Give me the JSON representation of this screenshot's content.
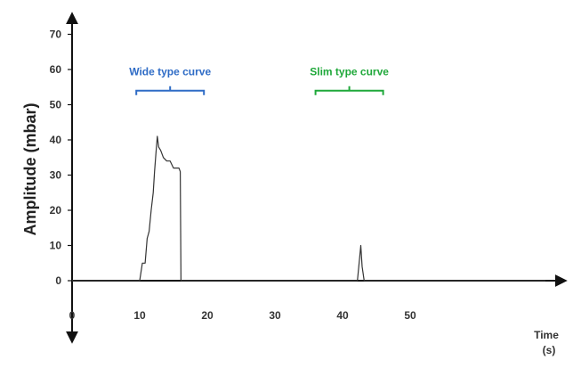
{
  "chart_data": {
    "type": "line",
    "title": "",
    "xlabel": "Time",
    "xunit": "(s)",
    "ylabel": "Amplitude  (mbar)",
    "xlim": [
      0,
      70
    ],
    "ylim": [
      -10,
      70
    ],
    "x_ticks": [
      0,
      10,
      20,
      30,
      40,
      50
    ],
    "y_ticks": [
      0,
      10,
      20,
      30,
      40,
      50,
      60,
      70
    ],
    "grid": false,
    "series": [
      {
        "color": "#333333",
        "x": [
          0,
          10.0,
          10.4,
          10.8,
          11.1,
          11.4,
          11.7,
          12.0,
          12.2,
          12.4,
          12.6,
          12.8,
          13.1,
          13.5,
          14.0,
          14.5,
          15.0,
          15.5,
          15.8,
          16.0,
          16.1,
          20,
          30,
          40,
          42.2,
          42.5,
          42.7,
          42.9,
          43.2,
          50,
          70
        ],
        "y": [
          0,
          0,
          5,
          5,
          12,
          14,
          20,
          25,
          31,
          36,
          41,
          38,
          37,
          35,
          34,
          34,
          32,
          32,
          32,
          31,
          0,
          0,
          0,
          0,
          0,
          6,
          10,
          4,
          0,
          0,
          0
        ]
      }
    ],
    "annotations": [
      {
        "text": "Wide type curve",
        "x_range": [
          9.5,
          19.5
        ],
        "y": 54,
        "color": "#2f6cc6"
      },
      {
        "text": "Slim type curve",
        "x_range": [
          36,
          46
        ],
        "y": 54,
        "color": "#1fa83a"
      }
    ]
  }
}
